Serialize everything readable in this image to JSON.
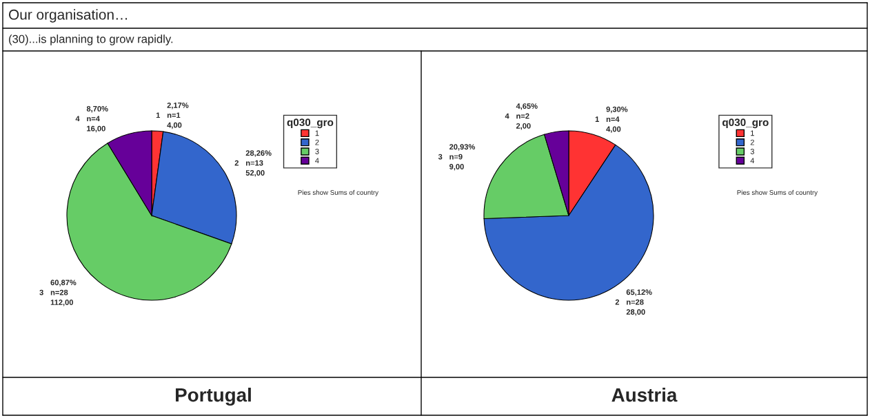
{
  "chart_data": [
    {
      "type": "pie",
      "title": "Our organisation…",
      "subtitle": "(30)...is planning to grow rapidly.",
      "xlabel": "Portugal",
      "legend_title": "q030_gro",
      "legend": "right",
      "categories": [
        "1",
        "2",
        "3",
        "4"
      ],
      "values": [
        2.17,
        28.26,
        60.87,
        8.7
      ],
      "colors": [
        "#ff3333",
        "#3366cc",
        "#66cc66",
        "#660099"
      ],
      "value_labels": [
        "2,17%\nn=1\n4,00",
        "28,26%\nn=13\n52,00",
        "60,87%\nn=28\n112,00",
        "8,70%\nn=4\n16,00"
      ],
      "annotations": [
        "Pies show Sums of country"
      ]
    },
    {
      "type": "pie",
      "xlabel": "Austria",
      "legend_title": "q030_gro",
      "legend": "right",
      "categories": [
        "1",
        "2",
        "3",
        "4"
      ],
      "values": [
        9.3,
        65.12,
        20.93,
        4.65
      ],
      "colors": [
        "#ff3333",
        "#3366cc",
        "#66cc66",
        "#660099"
      ],
      "value_labels": [
        "9,30%\nn=4\n4,00",
        "65,12%\nn=28\n28,00",
        "20,93%\nn=9\n9,00",
        "4,65%\nn=2\n2,00"
      ],
      "annotations": [
        "Pies show Sums of country"
      ]
    }
  ]
}
